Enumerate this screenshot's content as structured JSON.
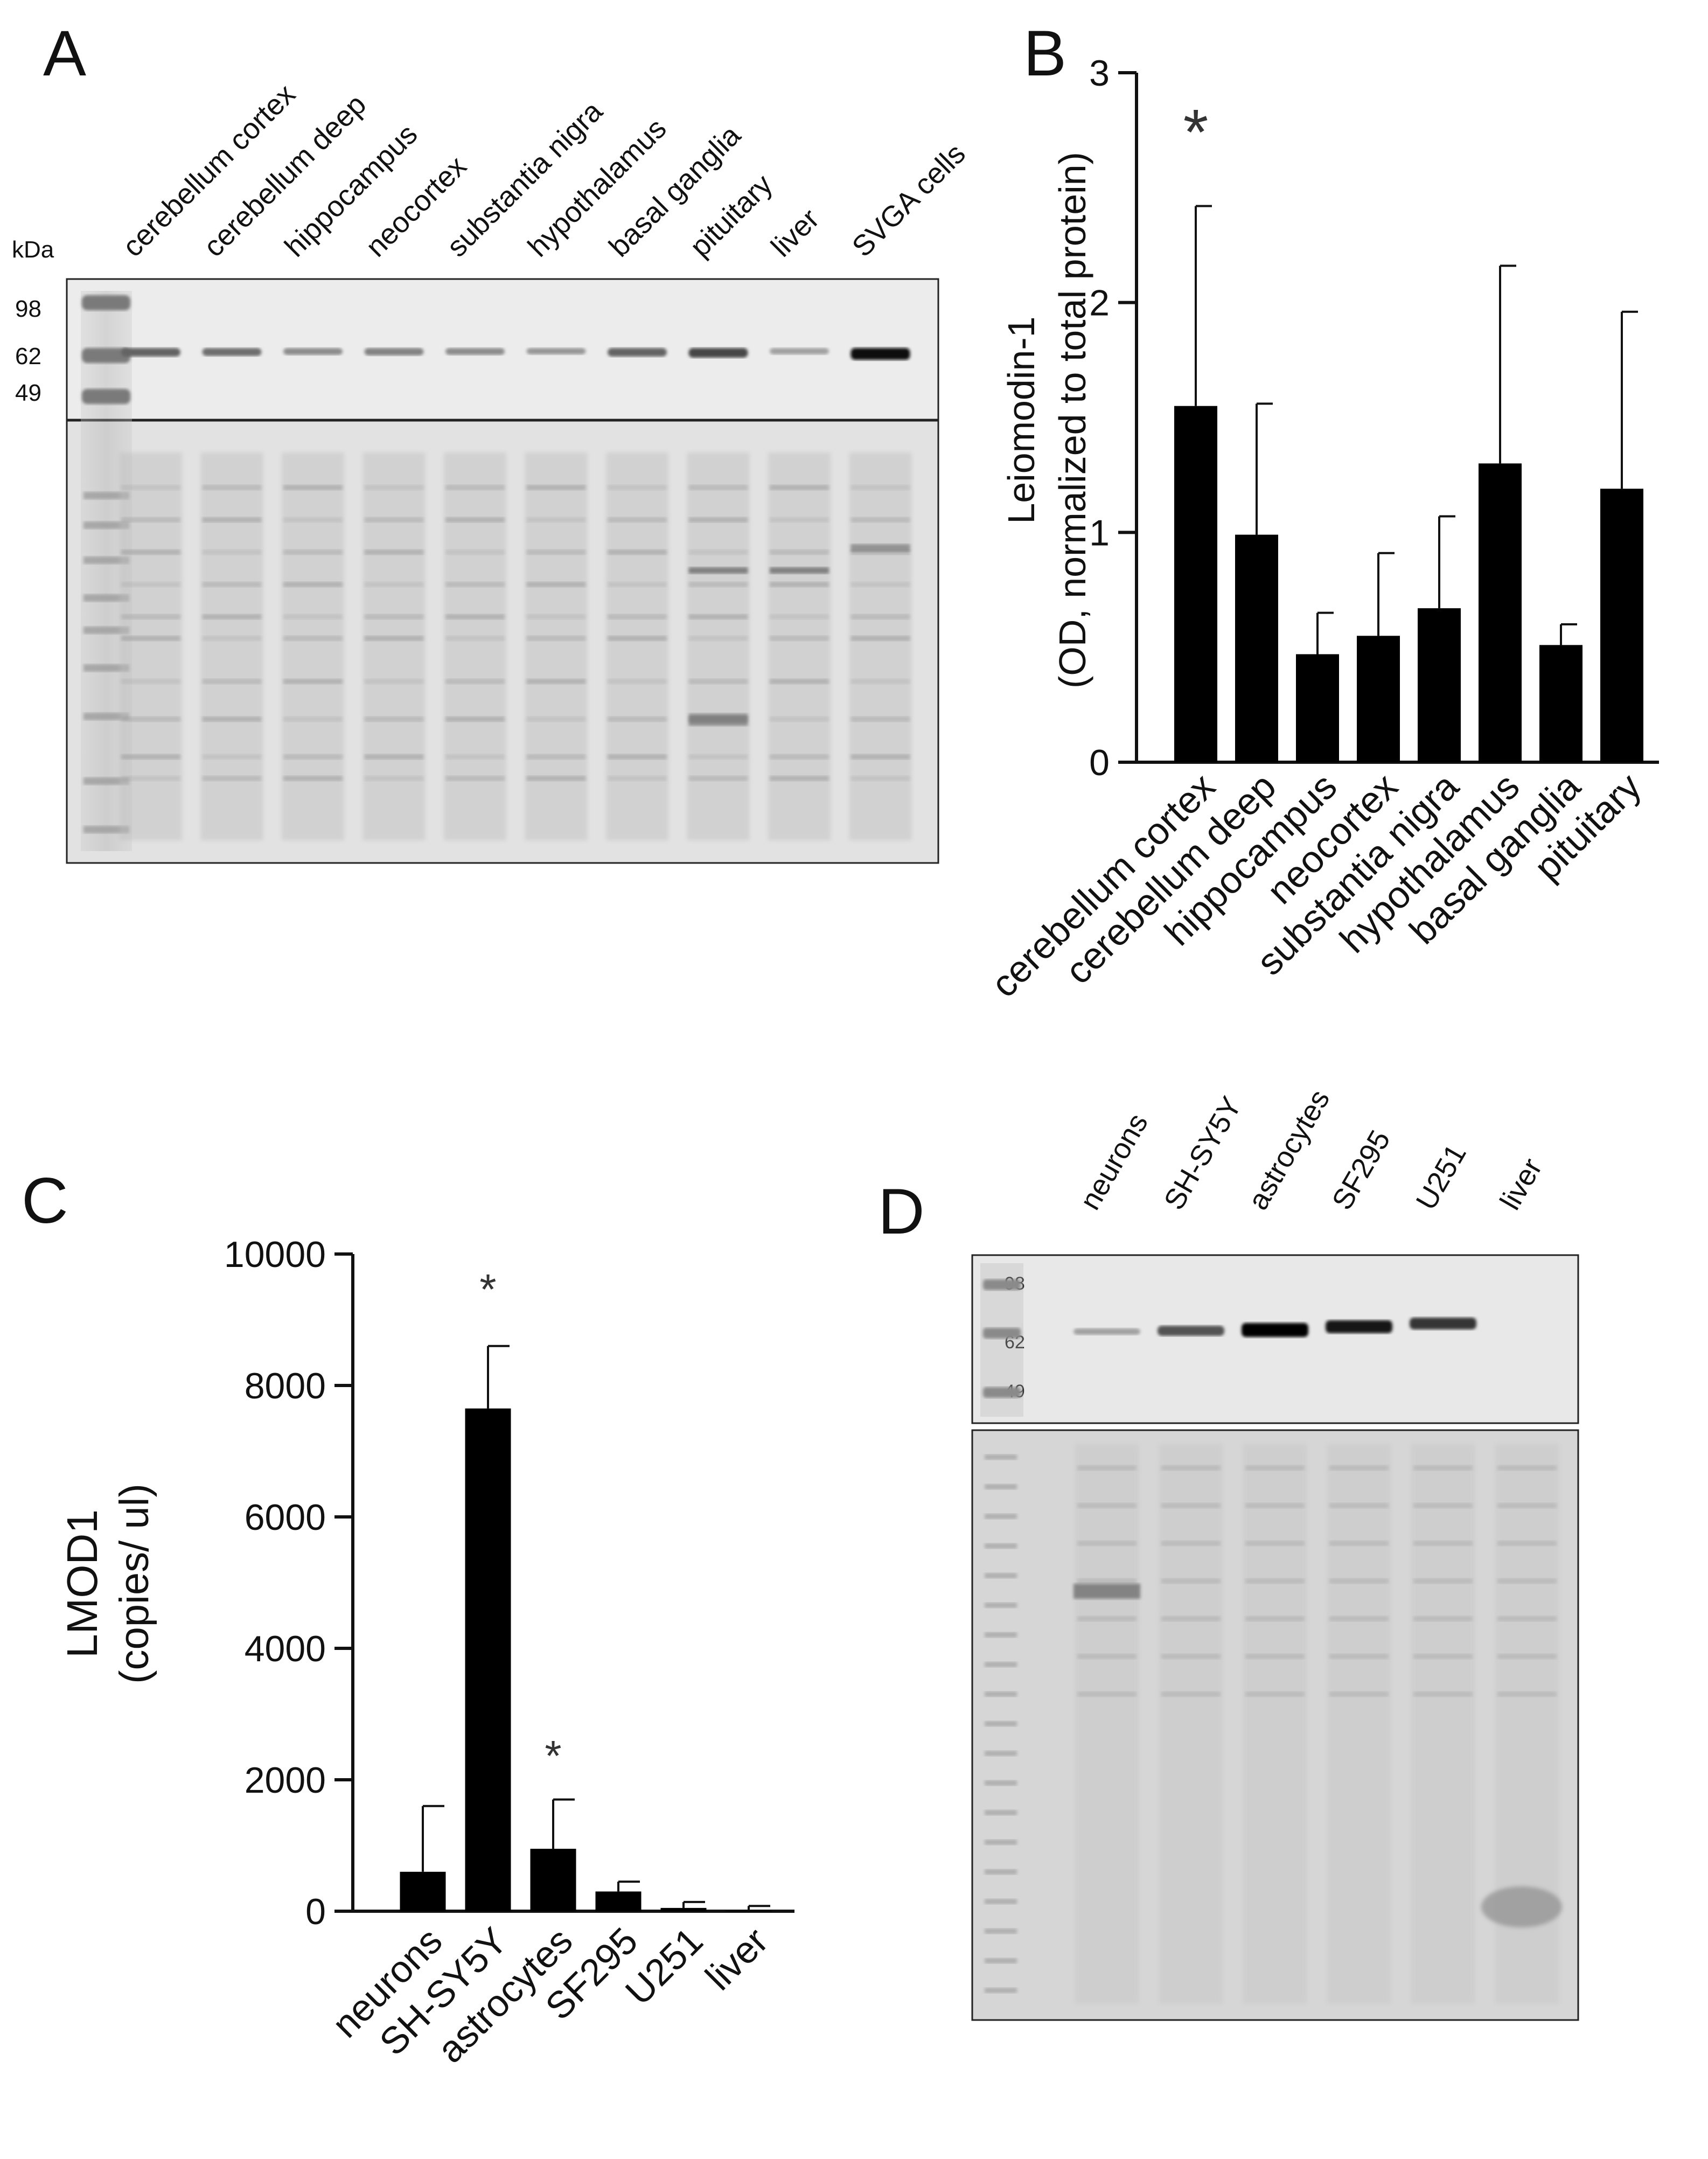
{
  "panels": {
    "A": {
      "letter": "A",
      "kda_label": "kDa",
      "markers": [
        "98",
        "62",
        "49"
      ],
      "lanes": [
        "cerebellum cortex",
        "cerebellum deep",
        "hippocampus",
        "neocortex",
        "substantia nigra",
        "hypothalamus",
        "basal ganglia",
        "pituitary",
        "liver",
        "SVGA cells"
      ],
      "band_intensity": [
        0.55,
        0.5,
        0.35,
        0.4,
        0.35,
        0.3,
        0.55,
        0.7,
        0.25,
        1.0
      ]
    },
    "B": {
      "letter": "B"
    },
    "C": {
      "letter": "C"
    },
    "D": {
      "letter": "D",
      "markers": [
        "98",
        "62",
        "49"
      ],
      "lanes": [
        "neurons",
        "SH-SY5Y",
        "astrocytes",
        "SF295",
        "U251",
        "liver"
      ],
      "band_intensity": [
        0.2,
        0.6,
        1.0,
        0.9,
        0.75,
        0.0
      ]
    }
  },
  "chart_data": [
    {
      "type": "bar",
      "panel": "B",
      "categories": [
        "cerebellum cortex",
        "cerebellum deep",
        "hippocampus",
        "neocortex",
        "substantia nigra",
        "hypothalamus",
        "basal ganglia",
        "pituitary"
      ],
      "values": [
        1.55,
        0.99,
        0.47,
        0.55,
        0.67,
        1.3,
        0.51,
        1.19
      ],
      "errors": [
        0.87,
        0.57,
        0.18,
        0.36,
        0.4,
        0.86,
        0.09,
        0.77
      ],
      "ylabel_line1": "Leiomodin-1",
      "ylabel_line2": "(OD, normalized to total protein)",
      "ylim": [
        0,
        3
      ],
      "yticks": [
        "0",
        "1",
        "2",
        "3"
      ],
      "annotations": [
        {
          "category": "cerebellum cortex",
          "text": "*",
          "y": 2.8
        }
      ]
    },
    {
      "type": "bar",
      "panel": "C",
      "categories": [
        "neurons",
        "SH-SY5Y",
        "astrocytes",
        "SF295",
        "U251",
        "liver"
      ],
      "values": [
        600,
        7650,
        950,
        300,
        50,
        10
      ],
      "errors": [
        1000,
        950,
        750,
        150,
        90,
        70
      ],
      "ylabel_line1": "LMOD1",
      "ylabel_line2": "(copies/ ul)",
      "ylim": [
        0,
        10000
      ],
      "yticks": [
        "0",
        "2000",
        "4000",
        "6000",
        "8000",
        "10000"
      ],
      "annotations": [
        {
          "category": "SH-SY5Y",
          "text": "*",
          "y": 9600
        },
        {
          "category": "astrocytes",
          "text": "*",
          "y": 2500
        }
      ]
    }
  ]
}
